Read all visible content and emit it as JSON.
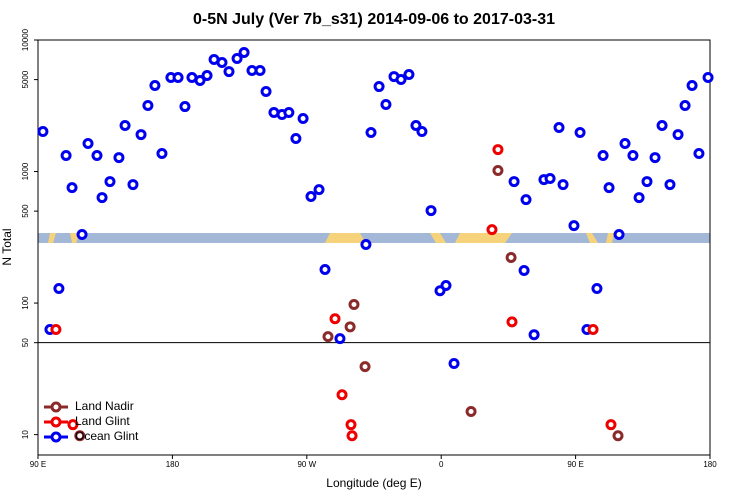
{
  "chart_data": {
    "type": "scatter",
    "title": "0-5N July (Ver 7b_s31)   2014-09-06 to 2017-03-31",
    "x_label": "Longitude (deg E)",
    "y_label": "N Total",
    "log_y": true,
    "xlim": [
      90,
      540
    ],
    "ylim": [
      7,
      10000
    ],
    "xticks": [
      {
        "value": 90,
        "label": "90 E"
      },
      180,
      {
        "value": 270,
        "label": "90 W"
      },
      {
        "value": 360,
        "label": "0"
      },
      {
        "value": 450,
        "label": "90 E"
      },
      {
        "value": 540,
        "label": "180"
      }
    ],
    "yticks": [
      10,
      50,
      100,
      500,
      1000,
      5000,
      10000
    ],
    "reference_line": 50,
    "legend": "lower left",
    "series": [
      {
        "name": "Land Nadir",
        "color": "#8b2a2a",
        "x": [
          118,
          284.2,
          299,
          301.6,
          309,
          380,
          398,
          406.8,
          478.4
        ],
        "values": [
          9.8,
          55.6,
          66,
          97.5,
          32.9,
          15,
          1018,
          222,
          9.8
        ]
      },
      {
        "name": "Land Glint",
        "color": "#ee0000",
        "x": [
          102,
          113.4,
          288.9,
          293.6,
          299.6,
          300.3,
          394,
          398,
          407.4,
          461.7,
          473.7
        ],
        "values": [
          63,
          11.9,
          76,
          20.1,
          11.9,
          9.8,
          362,
          1469,
          72,
          63,
          11.9
        ]
      },
      {
        "name": "Ocean Glint",
        "color": "#0000ee",
        "x": [
          93.3,
          98,
          104,
          108.8,
          112.8,
          119.5,
          123.5,
          129.5,
          132.9,
          138.2,
          144.2,
          148.3,
          153.6,
          159,
          163.6,
          168.3,
          173,
          179,
          183.8,
          188.4,
          193.1,
          198.5,
          203.2,
          207.9,
          213.2,
          217.9,
          223.3,
          228,
          233.3,
          238.7,
          242.7,
          248,
          253.4,
          258,
          262.7,
          267.5,
          272.8,
          278.2,
          282.2,
          292.2,
          309.6,
          313,
          318.4,
          323,
          328.4,
          333.1,
          338.4,
          343.1,
          347.1,
          353.2,
          359.2,
          363.2,
          368.6,
          408.8,
          415.5,
          416.8,
          422.2,
          428.8,
          432.9,
          441.6,
          438.9,
          448.9,
          453,
          457.6,
          464.3,
          468.4,
          472.4,
          479.1,
          483.1,
          488.4,
          492.5,
          497.8,
          503.2,
          507.9,
          513.2,
          518.6,
          523.3,
          528,
          532.6,
          538.7
        ],
        "values": [
          2014,
          63,
          129,
          1324,
          755,
          332,
          1633,
          1324,
          634,
          839,
          1277,
          2239,
          796,
          1910,
          3177,
          4508,
          1371,
          5188,
          5188,
          3119,
          5188,
          4920,
          5370,
          7110,
          6745,
          5755,
          7230,
          8035,
          5860,
          5860,
          4057,
          2812,
          2712,
          2812,
          1782,
          2529,
          646,
          729,
          180,
          53.7,
          279,
          1981,
          4427,
          3236,
          5272,
          5012,
          5466,
          2239,
          2014,
          505,
          124,
          136,
          34.7,
          839,
          177,
          612,
          57.5,
          869,
          885,
          796,
          2163,
          388,
          1981,
          63,
          129,
          1324,
          755,
          332,
          1633,
          1324,
          634,
          839,
          1277,
          2239,
          796,
          1910,
          3177,
          4508,
          1371,
          5188
        ]
      }
    ]
  }
}
